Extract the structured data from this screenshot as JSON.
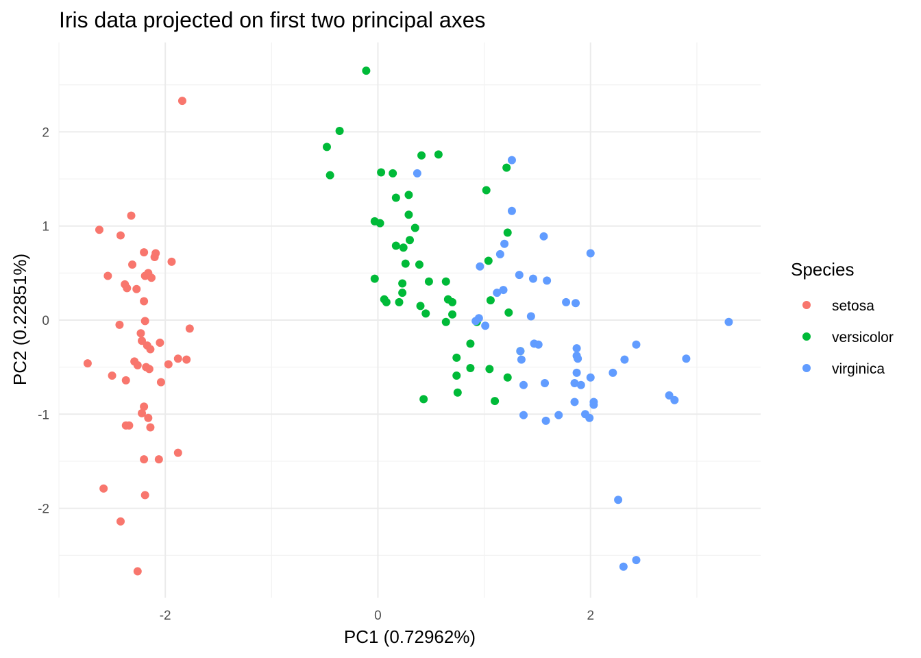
{
  "chart_data": {
    "type": "scatter",
    "title": "Iris data projected on first two principal axes",
    "xlabel": "PC1 (0.72962%)",
    "ylabel": "PC2 (0.22851%)",
    "xlim": [
      -3.0,
      3.6
    ],
    "ylim": [
      -2.95,
      2.95
    ],
    "x_ticks": [
      -2,
      0,
      2
    ],
    "x_tick_labels": [
      "-2",
      "0",
      "2"
    ],
    "y_ticks": [
      -2,
      -1,
      0,
      1,
      2
    ],
    "y_tick_labels": [
      "-2",
      "-1",
      "0",
      "1",
      "2"
    ],
    "grid": true,
    "legend": {
      "title": "Species",
      "position": "right"
    },
    "series": [
      {
        "name": "setosa",
        "color": "#F8766D",
        "points": [
          [
            -1.84,
            2.33
          ],
          [
            -2.32,
            1.11
          ],
          [
            -2.62,
            0.96
          ],
          [
            -2.42,
            0.9
          ],
          [
            -2.2,
            0.72
          ],
          [
            -2.09,
            0.71
          ],
          [
            -2.1,
            0.67
          ],
          [
            -1.94,
            0.62
          ],
          [
            -2.31,
            0.59
          ],
          [
            -2.54,
            0.47
          ],
          [
            -2.16,
            0.5
          ],
          [
            -2.19,
            0.47
          ],
          [
            -2.13,
            0.45
          ],
          [
            -2.38,
            0.38
          ],
          [
            -2.36,
            0.34
          ],
          [
            -2.27,
            0.33
          ],
          [
            -2.2,
            0.2
          ],
          [
            -2.19,
            -0.01
          ],
          [
            -2.43,
            -0.05
          ],
          [
            -1.77,
            -0.09
          ],
          [
            -2.23,
            -0.14
          ],
          [
            -2.22,
            -0.22
          ],
          [
            -2.05,
            -0.24
          ],
          [
            -2.17,
            -0.27
          ],
          [
            -2.14,
            -0.31
          ],
          [
            -1.88,
            -0.41
          ],
          [
            -1.8,
            -0.42
          ],
          [
            -2.29,
            -0.44
          ],
          [
            -1.97,
            -0.47
          ],
          [
            -2.26,
            -0.48
          ],
          [
            -2.18,
            -0.5
          ],
          [
            -2.15,
            -0.52
          ],
          [
            -2.73,
            -0.46
          ],
          [
            -2.5,
            -0.59
          ],
          [
            -2.37,
            -0.64
          ],
          [
            -2.04,
            -0.66
          ],
          [
            -2.2,
            -0.92
          ],
          [
            -2.22,
            -0.99
          ],
          [
            -2.16,
            -1.04
          ],
          [
            -2.37,
            -1.12
          ],
          [
            -2.34,
            -1.12
          ],
          [
            -2.14,
            -1.14
          ],
          [
            -1.88,
            -1.41
          ],
          [
            -2.2,
            -1.48
          ],
          [
            -2.06,
            -1.48
          ],
          [
            -2.58,
            -1.79
          ],
          [
            -2.19,
            -1.86
          ],
          [
            -2.42,
            -2.14
          ],
          [
            -2.26,
            -2.67
          ]
        ]
      },
      {
        "name": "versicolor",
        "color": "#00BA38",
        "points": [
          [
            -0.11,
            2.65
          ],
          [
            -0.36,
            2.01
          ],
          [
            -0.48,
            1.84
          ],
          [
            -0.45,
            1.54
          ],
          [
            0.03,
            1.57
          ],
          [
            0.14,
            1.56
          ],
          [
            0.41,
            1.75
          ],
          [
            0.57,
            1.76
          ],
          [
            1.21,
            1.62
          ],
          [
            1.02,
            1.38
          ],
          [
            0.17,
            1.3
          ],
          [
            0.29,
            1.33
          ],
          [
            0.29,
            1.12
          ],
          [
            -0.03,
            1.05
          ],
          [
            0.02,
            1.03
          ],
          [
            0.35,
            0.98
          ],
          [
            1.22,
            0.93
          ],
          [
            0.17,
            0.79
          ],
          [
            0.24,
            0.77
          ],
          [
            0.3,
            0.85
          ],
          [
            1.04,
            0.63
          ],
          [
            0.26,
            0.6
          ],
          [
            0.39,
            0.59
          ],
          [
            -0.03,
            0.44
          ],
          [
            0.48,
            0.41
          ],
          [
            0.64,
            0.41
          ],
          [
            0.23,
            0.39
          ],
          [
            0.23,
            0.29
          ],
          [
            0.06,
            0.22
          ],
          [
            0.08,
            0.19
          ],
          [
            0.2,
            0.19
          ],
          [
            0.4,
            0.15
          ],
          [
            0.66,
            0.22
          ],
          [
            0.7,
            0.19
          ],
          [
            1.06,
            0.21
          ],
          [
            0.45,
            0.07
          ],
          [
            0.7,
            0.06
          ],
          [
            1.23,
            0.08
          ],
          [
            0.64,
            -0.02
          ],
          [
            0.93,
            -0.02
          ],
          [
            0.87,
            -0.25
          ],
          [
            1.34,
            -0.33
          ],
          [
            0.74,
            -0.4
          ],
          [
            0.87,
            -0.51
          ],
          [
            1.05,
            -0.52
          ],
          [
            0.74,
            -0.59
          ],
          [
            1.22,
            -0.61
          ],
          [
            0.75,
            -0.77
          ],
          [
            0.43,
            -0.84
          ],
          [
            1.1,
            -0.86
          ]
        ]
      },
      {
        "name": "virginica",
        "color": "#619CFF",
        "points": [
          [
            1.26,
            1.7
          ],
          [
            0.37,
            1.56
          ],
          [
            1.26,
            1.16
          ],
          [
            1.56,
            0.89
          ],
          [
            1.19,
            0.81
          ],
          [
            2.0,
            0.71
          ],
          [
            1.15,
            0.7
          ],
          [
            0.96,
            0.57
          ],
          [
            1.33,
            0.48
          ],
          [
            1.46,
            0.44
          ],
          [
            1.59,
            0.42
          ],
          [
            1.18,
            0.32
          ],
          [
            1.12,
            0.29
          ],
          [
            1.77,
            0.19
          ],
          [
            1.86,
            0.18
          ],
          [
            1.44,
            0.04
          ],
          [
            0.95,
            0.02
          ],
          [
            0.92,
            -0.01
          ],
          [
            3.3,
            -0.02
          ],
          [
            1.01,
            -0.06
          ],
          [
            1.47,
            -0.25
          ],
          [
            1.51,
            -0.26
          ],
          [
            2.43,
            -0.26
          ],
          [
            1.87,
            -0.3
          ],
          [
            1.34,
            -0.33
          ],
          [
            1.87,
            -0.38
          ],
          [
            1.88,
            -0.41
          ],
          [
            2.32,
            -0.42
          ],
          [
            2.9,
            -0.41
          ],
          [
            1.35,
            -0.42
          ],
          [
            2.21,
            -0.56
          ],
          [
            1.87,
            -0.56
          ],
          [
            2.0,
            -0.61
          ],
          [
            1.57,
            -0.67
          ],
          [
            1.85,
            -0.67
          ],
          [
            1.91,
            -0.69
          ],
          [
            1.37,
            -0.69
          ],
          [
            2.74,
            -0.8
          ],
          [
            2.79,
            -0.85
          ],
          [
            1.85,
            -0.87
          ],
          [
            2.03,
            -0.87
          ],
          [
            2.03,
            -0.9
          ],
          [
            1.37,
            -1.01
          ],
          [
            1.7,
            -1.01
          ],
          [
            1.95,
            -1.0
          ],
          [
            1.99,
            -1.04
          ],
          [
            1.58,
            -1.07
          ],
          [
            2.26,
            -1.91
          ],
          [
            2.43,
            -2.55
          ],
          [
            2.31,
            -2.62
          ]
        ]
      }
    ]
  }
}
